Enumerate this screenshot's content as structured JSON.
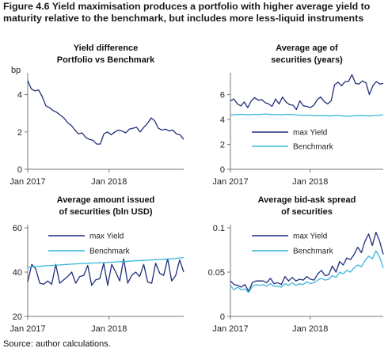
{
  "figure_title": "Figure 4.6   Yield maximisation produces a portfolio with higher average yield to maturity relative to the benchmark, but includes more less-liquid instruments",
  "source": "Source: author calculations.",
  "colors": {
    "navy": "#1f2f7a",
    "cyan": "#39b6dc",
    "axis": "#777777"
  },
  "chart_data": [
    {
      "type": "line",
      "title": [
        "Yield difference",
        "Portfolio vs Benchmark"
      ],
      "unit": "bp",
      "ylim": [
        0,
        5
      ],
      "yticks": [
        0,
        2,
        4
      ],
      "xticks": [
        {
          "label": "Jan 2017",
          "x": 0
        },
        {
          "label": "Jan 2018",
          "x": 12
        }
      ],
      "xlim": [
        0,
        23
      ],
      "series": [
        {
          "name": "",
          "color": "navy",
          "values": [
            4.75,
            4.3,
            4.2,
            4.25,
            3.9,
            3.4,
            3.3,
            3.15,
            3.05,
            2.9,
            2.75,
            2.5,
            2.35,
            2.1,
            1.9,
            1.95,
            1.7,
            1.6,
            1.55,
            1.35,
            1.35,
            1.9,
            2.0,
            1.85,
            2.0,
            2.1,
            2.05,
            1.95,
            2.15,
            2.2,
            2.25,
            2.0,
            2.25,
            2.45,
            2.75,
            2.6,
            2.2,
            2.1,
            2.15,
            2.05,
            2.1,
            1.9,
            1.85,
            1.6
          ]
        }
      ]
    },
    {
      "type": "line",
      "title": [
        "Average age of",
        "securities (years)"
      ],
      "ylim": [
        0,
        7.5
      ],
      "yticks": [
        0,
        2,
        4,
        6
      ],
      "xticks": [
        {
          "label": "Jan 2017",
          "x": 0
        },
        {
          "label": "Jan 2018",
          "x": 12
        }
      ],
      "xlim": [
        0,
        23
      ],
      "legend": [
        "max Yield",
        "Benchmark"
      ],
      "series": [
        {
          "name": "max Yield",
          "color": "navy",
          "values": [
            5.5,
            5.65,
            5.25,
            5.1,
            5.4,
            4.95,
            5.5,
            5.75,
            5.55,
            5.6,
            5.35,
            5.25,
            5.05,
            5.65,
            5.25,
            5.8,
            5.4,
            5.2,
            5.15,
            4.8,
            5.5,
            5.1,
            5.05,
            4.95,
            5.15,
            5.6,
            5.8,
            5.45,
            5.25,
            5.5,
            6.8,
            7.0,
            6.7,
            7.05,
            7.05,
            7.6,
            6.9,
            6.85,
            7.1,
            6.95,
            6.0,
            6.7,
            7.05,
            6.85,
            6.9
          ]
        },
        {
          "name": "Benchmark",
          "color": "cyan",
          "values": [
            4.35,
            4.38,
            4.4,
            4.42,
            4.4,
            4.38,
            4.4,
            4.42,
            4.4,
            4.42,
            4.44,
            4.42,
            4.4,
            4.4,
            4.38,
            4.4,
            4.42,
            4.4,
            4.38,
            4.36,
            4.35,
            4.34,
            4.34,
            4.32,
            4.3,
            4.3,
            4.32,
            4.3,
            4.28,
            4.3,
            4.32,
            4.3,
            4.28,
            4.26,
            4.28,
            4.3,
            4.3,
            4.32,
            4.3,
            4.28,
            4.3,
            4.32,
            4.34,
            4.4
          ]
        }
      ]
    },
    {
      "type": "line",
      "title": [
        "Average amount issued",
        "of securities (bln USD)"
      ],
      "ylim": [
        20,
        60
      ],
      "yticks": [
        20,
        40,
        60
      ],
      "xticks": [
        {
          "label": "Jan 2017",
          "x": 0
        },
        {
          "label": "Jan 2018",
          "x": 12
        }
      ],
      "xlim": [
        0,
        23
      ],
      "legend": [
        "max Yield",
        "Benchmark"
      ],
      "series": [
        {
          "name": "max Yield",
          "color": "navy",
          "values": [
            35.5,
            43.5,
            41.5,
            35.0,
            34.5,
            36.0,
            34.5,
            43.5,
            35.0,
            36.5,
            38.0,
            40.0,
            35.0,
            38.0,
            38.5,
            43.0,
            34.0,
            36.5,
            37.0,
            44.0,
            34.0,
            43.5,
            40.0,
            36.0,
            46.0,
            35.0,
            38.5,
            40.0,
            38.0,
            43.5,
            35.5,
            35.0,
            44.0,
            39.5,
            38.5,
            46.0,
            36.0,
            38.5,
            45.5,
            40.0
          ]
        },
        {
          "name": "Benchmark",
          "color": "cyan",
          "values": [
            42.2,
            42.4,
            42.5,
            42.6,
            42.8,
            42.9,
            43.0,
            43.1,
            43.2,
            43.4,
            43.5,
            43.6,
            43.7,
            43.8,
            43.9,
            44.0,
            44.1,
            44.1,
            44.2,
            44.3,
            44.4,
            44.5,
            44.6,
            44.7,
            44.8,
            44.9,
            45.0,
            45.1,
            45.2,
            45.3,
            45.4,
            45.5,
            45.6,
            45.7,
            45.8,
            45.9,
            46.0,
            46.2,
            46.4,
            46.6
          ]
        }
      ]
    },
    {
      "type": "line",
      "title": [
        "Average bid-ask spread",
        "of securities"
      ],
      "ylim": [
        0,
        0.1
      ],
      "yticks": [
        0,
        0.05,
        0.1
      ],
      "ytick_labels": [
        "0",
        "0.05",
        "0.1"
      ],
      "xticks": [
        {
          "label": "Jan 2017",
          "x": 0
        },
        {
          "label": "Jan 2018",
          "x": 12
        }
      ],
      "xlim": [
        0,
        23
      ],
      "legend": [
        "max Yield",
        "Benchmark"
      ],
      "series": [
        {
          "name": "max Yield",
          "color": "navy",
          "values": [
            0.04,
            0.036,
            0.035,
            0.033,
            0.036,
            0.028,
            0.038,
            0.04,
            0.04,
            0.04,
            0.038,
            0.043,
            0.037,
            0.038,
            0.036,
            0.045,
            0.04,
            0.044,
            0.04,
            0.042,
            0.041,
            0.045,
            0.042,
            0.041,
            0.048,
            0.052,
            0.046,
            0.047,
            0.057,
            0.05,
            0.062,
            0.058,
            0.066,
            0.064,
            0.07,
            0.078,
            0.072,
            0.085,
            0.093,
            0.08,
            0.095,
            0.085,
            0.07
          ]
        },
        {
          "name": "Benchmark",
          "color": "cyan",
          "values": [
            0.035,
            0.03,
            0.033,
            0.03,
            0.031,
            0.027,
            0.034,
            0.036,
            0.035,
            0.036,
            0.034,
            0.037,
            0.034,
            0.034,
            0.033,
            0.037,
            0.035,
            0.038,
            0.035,
            0.037,
            0.036,
            0.039,
            0.037,
            0.038,
            0.041,
            0.043,
            0.041,
            0.042,
            0.046,
            0.044,
            0.05,
            0.048,
            0.052,
            0.05,
            0.055,
            0.058,
            0.056,
            0.063,
            0.068,
            0.065,
            0.074,
            0.067,
            0.055
          ]
        }
      ]
    }
  ]
}
